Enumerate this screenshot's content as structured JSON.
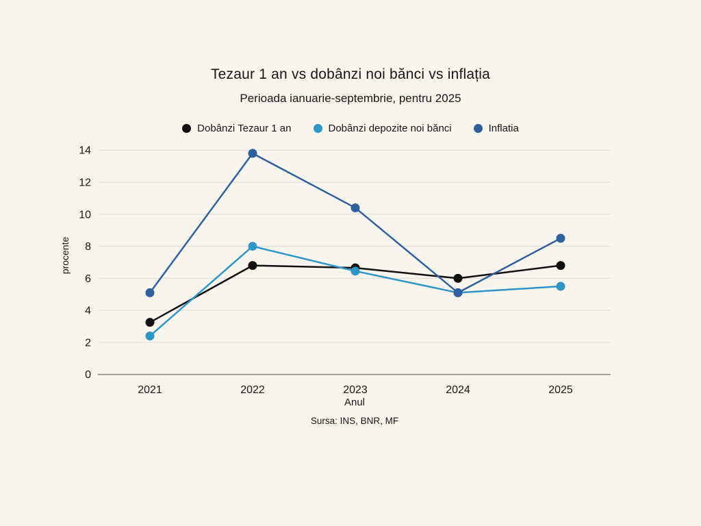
{
  "page": {
    "background": "#f8f4ee"
  },
  "chart_data": {
    "type": "line",
    "title": "Tezaur 1 an vs dobânzi noi bănci vs inflația",
    "subtitle": "Perioada ianuarie-septembrie, pentru 2025",
    "xlabel": "Anul",
    "ylabel": "procente",
    "source": "Sursa: INS, BNR, MF",
    "categories": [
      "2021",
      "2022",
      "2023",
      "2024",
      "2025"
    ],
    "y_ticks": [
      0,
      2,
      4,
      6,
      8,
      10,
      12,
      14
    ],
    "ylim": [
      0,
      14
    ],
    "grid": true,
    "legend_position": "top",
    "series": [
      {
        "name": "Dobânzi Tezaur 1 an",
        "color": "#111111",
        "values": [
          3.25,
          6.8,
          6.65,
          6.0,
          6.8
        ]
      },
      {
        "name": "Dobânzi depozite noi bănci",
        "color": "#2e95c6",
        "values": [
          2.4,
          8.0,
          6.45,
          5.1,
          5.5
        ]
      },
      {
        "name": "Inflatia",
        "color": "#305f9e",
        "values": [
          5.1,
          13.8,
          10.4,
          5.1,
          8.5
        ]
      }
    ],
    "colors": {
      "grid": "#e2ded8",
      "axis": "#8f8d89",
      "text": "#161616"
    }
  }
}
